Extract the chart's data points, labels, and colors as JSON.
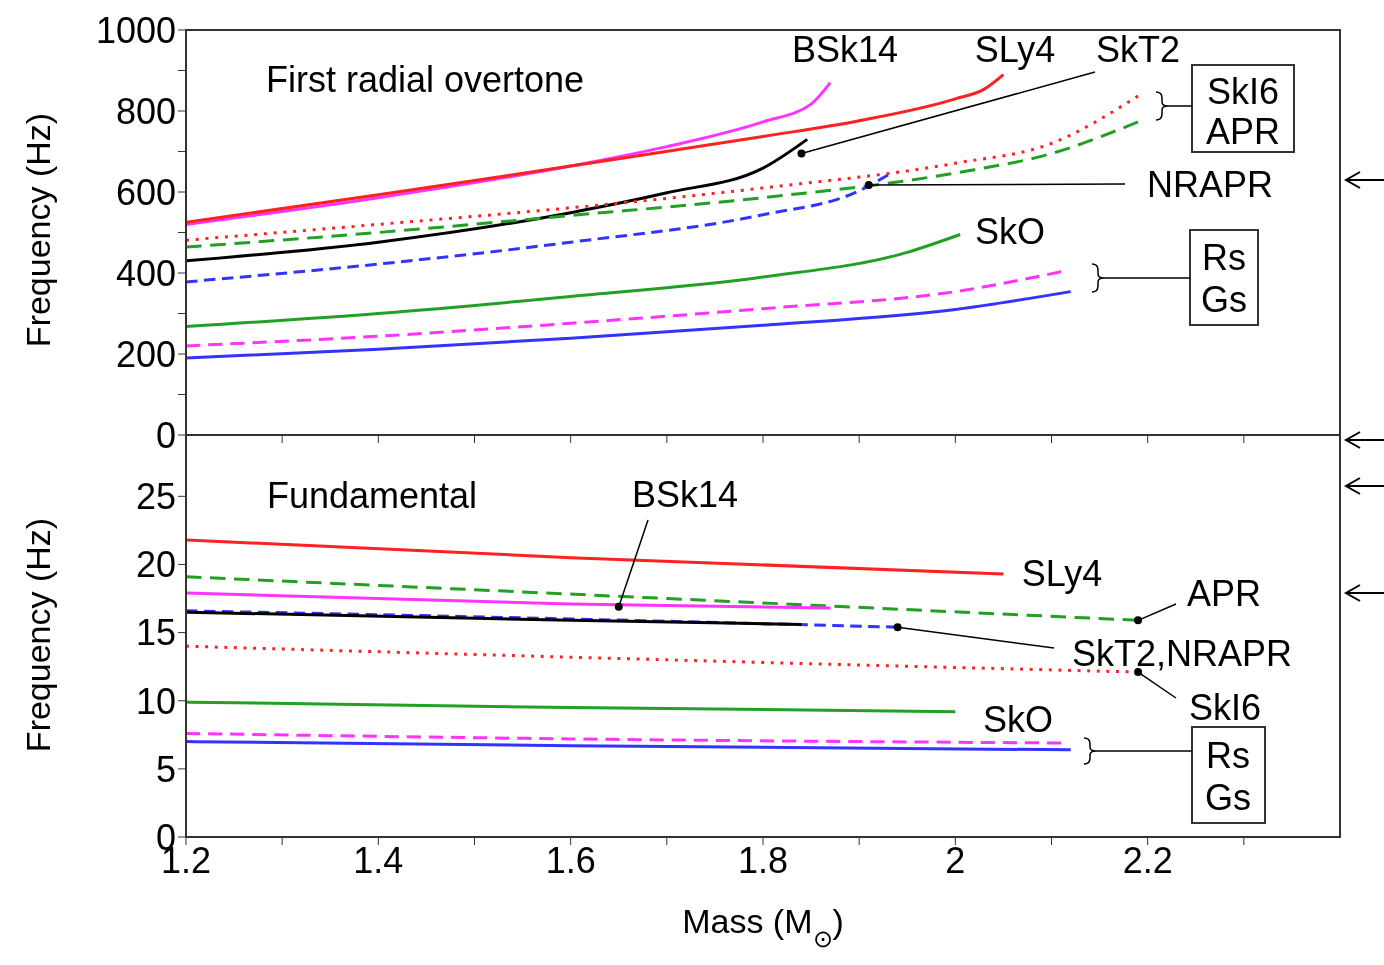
{
  "chart_data": [
    {
      "type": "line",
      "title": "First radial overtone",
      "ylabel": "Frequency (Hz)",
      "xlim": [
        1.2,
        2.4
      ],
      "xticks": [
        1.2,
        {
          "value": 1.3,
          "label": null
        },
        1.4,
        {
          "value": 1.5,
          "label": null
        },
        1.6,
        {
          "value": 1.7,
          "label": null
        },
        1.8,
        {
          "value": 1.9,
          "label": null
        },
        2,
        {
          "value": 2.1,
          "label": null
        },
        2.2,
        {
          "value": 2.3,
          "label": null
        }
      ],
      "ylim": [
        0,
        1000
      ],
      "yticks": [
        0,
        {
          "value": 100,
          "label": null
        },
        200,
        {
          "value": 300,
          "label": null
        },
        400,
        {
          "value": 500,
          "label": null
        },
        600,
        {
          "value": 700,
          "label": null
        },
        800,
        {
          "value": 900,
          "label": null
        },
        1000
      ],
      "tick_labels": "y",
      "marker": "none",
      "series": [
        {
          "color": "#ff33ff",
          "line_style": "solid",
          "x": [
            1.2,
            1.4,
            1.6,
            1.7,
            1.8,
            1.85,
            1.87
          ],
          "values": [
            520,
            586,
            664,
            712,
            773,
            817,
            870
          ]
        },
        {
          "color": "#ff2020",
          "line_style": "solid",
          "x": [
            1.2,
            1.4,
            1.6,
            1.8,
            1.9,
            2.0,
            2.03,
            2.05
          ],
          "values": [
            525,
            593,
            664,
            737,
            776,
            830,
            854,
            890
          ]
        },
        {
          "color": "#000000",
          "line_style": "solid",
          "x": [
            1.2,
            1.4,
            1.6,
            1.7,
            1.8,
            1.846
          ],
          "values": [
            430,
            476,
            549,
            598,
            659,
            730
          ]
        },
        {
          "color": "#ff2020",
          "line_style": "dotted",
          "x": [
            1.2,
            1.4,
            1.6,
            1.8,
            2.0,
            2.1,
            2.19
          ],
          "values": [
            481,
            520,
            561,
            610,
            671,
            720,
            837
          ]
        },
        {
          "color": "#22a022",
          "line_style": "dashed",
          "x": [
            1.2,
            1.4,
            1.6,
            1.8,
            2.0,
            2.1,
            2.19
          ],
          "values": [
            464,
            500,
            542,
            586,
            647,
            695,
            773
          ]
        },
        {
          "color": "#3333ff",
          "line_style": "dashed",
          "x": [
            1.2,
            1.4,
            1.6,
            1.8,
            1.9,
            1.93
          ],
          "values": [
            378,
            422,
            476,
            544,
            603,
            642
          ]
        },
        {
          "color": "#22a022",
          "line_style": "solid",
          "x": [
            1.2,
            1.4,
            1.6,
            1.8,
            1.95,
            2.005
          ],
          "values": [
            268,
            300,
            342,
            390,
            451,
            495
          ]
        },
        {
          "color": "#ff33ff",
          "line_style": "dashed",
          "x": [
            1.2,
            1.4,
            1.6,
            1.8,
            2.0,
            2.11
          ],
          "values": [
            220,
            244,
            276,
            312,
            354,
            403
          ]
        },
        {
          "color": "#3333ff",
          "line_style": "solid",
          "x": [
            1.2,
            1.4,
            1.6,
            1.8,
            2.0,
            2.12
          ],
          "values": [
            190,
            212,
            239,
            271,
            310,
            354
          ]
        }
      ],
      "annotations": [
        {
          "text": "BSk14",
          "x": 1.87,
          "y": 870
        },
        {
          "text": "SLy4",
          "x": 2.05,
          "y": 890
        },
        {
          "text": "SkT2",
          "x": 1.84,
          "y": 695
        },
        {
          "text": "SkI6",
          "x": 2.19,
          "y": 837
        },
        {
          "text": "APR",
          "x": 2.19,
          "y": 773
        },
        {
          "text": "NRAPR",
          "x": 1.91,
          "y": 617
        },
        {
          "text": "SkO",
          "x": 2.005,
          "y": 495
        },
        "Rs",
        "Gs"
      ]
    },
    {
      "type": "line",
      "title": "Fundamental",
      "xlabel": "Mass (M$_{⊙}$)",
      "ylabel": "Frequency (Hz)",
      "xlim": [
        1.2,
        2.4
      ],
      "xticks": [
        1.2,
        {
          "value": 1.3,
          "label": null
        },
        1.4,
        {
          "value": 1.5,
          "label": null
        },
        1.6,
        {
          "value": 1.7,
          "label": null
        },
        1.8,
        {
          "value": 1.9,
          "label": null
        },
        2,
        {
          "value": 2.1,
          "label": null
        },
        2.2,
        {
          "value": 2.3,
          "label": null
        }
      ],
      "ylim": [
        0,
        29.5
      ],
      "yticks": [
        0,
        5,
        10,
        15,
        20,
        25
      ],
      "marker": "none",
      "series": [
        {
          "color": "#ff2020",
          "line_style": "solid",
          "x": [
            1.2,
            1.6,
            2.05
          ],
          "values": [
            21.8,
            20.5,
            19.3
          ]
        },
        {
          "color": "#22a022",
          "line_style": "dashed",
          "x": [
            1.2,
            1.7,
            2.19
          ],
          "values": [
            19.1,
            17.5,
            15.9
          ]
        },
        {
          "color": "#ff33ff",
          "line_style": "solid",
          "x": [
            1.2,
            1.6,
            1.87
          ],
          "values": [
            17.9,
            17.1,
            16.8
          ]
        },
        {
          "color": "#3333ff",
          "line_style": "dashed",
          "x": [
            1.2,
            1.6,
            1.94
          ],
          "values": [
            16.6,
            16.0,
            15.4
          ]
        },
        {
          "color": "#000000",
          "line_style": "solid",
          "x": [
            1.2,
            1.6,
            1.84
          ],
          "values": [
            16.5,
            15.9,
            15.6
          ]
        },
        {
          "color": "#ff2020",
          "line_style": "dotted",
          "x": [
            1.2,
            1.7,
            2.19
          ],
          "values": [
            14.0,
            13.0,
            12.1
          ]
        },
        {
          "color": "#22a022",
          "line_style": "solid",
          "x": [
            1.2,
            1.6,
            2.0
          ],
          "values": [
            9.9,
            9.5,
            9.2
          ]
        },
        {
          "color": "#ff33ff",
          "line_style": "dashed",
          "x": [
            1.2,
            1.6,
            2.11
          ],
          "values": [
            7.6,
            7.2,
            6.9
          ]
        },
        {
          "color": "#3333ff",
          "line_style": "solid",
          "x": [
            1.2,
            1.6,
            2.12
          ],
          "values": [
            7.0,
            6.7,
            6.4
          ]
        }
      ],
      "annotations": [
        {
          "text": "BSk14",
          "x": 1.65,
          "y": 16.9
        },
        {
          "text": "SLy4",
          "x": 2.05,
          "y": 19.3
        },
        {
          "text": "APR",
          "x": 2.19,
          "y": 15.9
        },
        {
          "text": "SkT2,NRAPR",
          "x": 1.94,
          "y": 15.4
        },
        {
          "text": "SkI6",
          "x": 2.19,
          "y": 12.1
        },
        {
          "text": "SkO",
          "x": 2.0,
          "y": 9.2
        },
        "Rs",
        "Gs"
      ]
    }
  ]
}
